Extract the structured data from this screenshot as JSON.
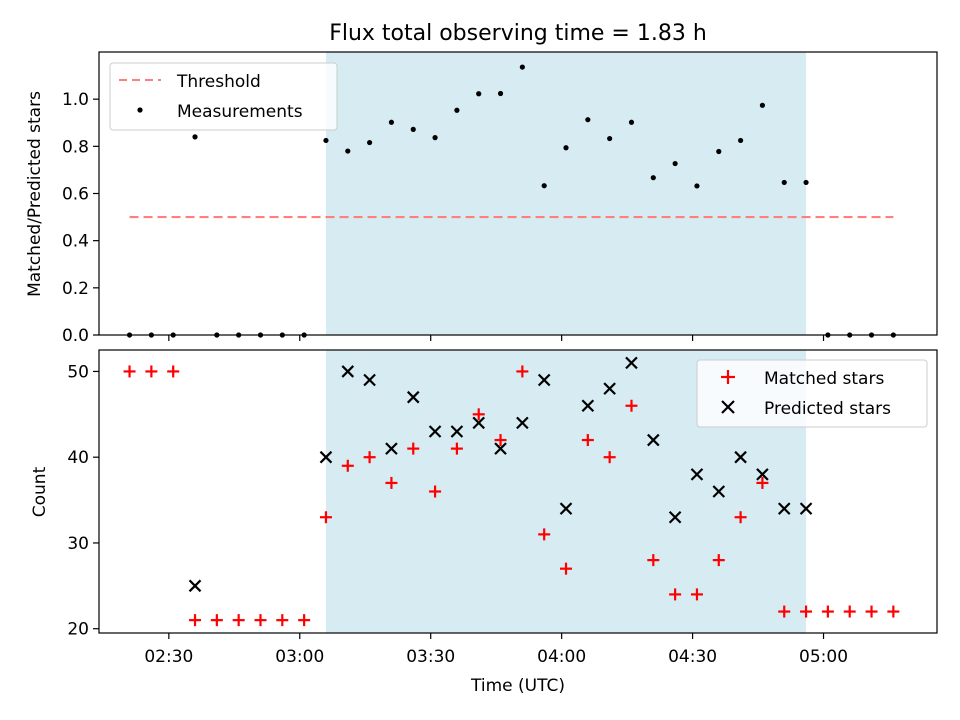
{
  "title": "Flux total observing time = 1.83 h",
  "colors": {
    "threshold": "#ff7f7f",
    "measurements": "#000000",
    "matched": "#ff0000",
    "predicted": "#000000",
    "observing_band": "#add8e6"
  },
  "chart_data": [
    {
      "type": "scatter",
      "panel": "top",
      "title": "Flux total observing time = 1.83 h",
      "xlabel": "",
      "ylabel": "Matched/Predicted stars",
      "xlim": [
        "02:14",
        "05:26"
      ],
      "ylim": [
        0,
        1.2
      ],
      "yticks": [
        0.0,
        0.2,
        0.4,
        0.6,
        0.8,
        1.0
      ],
      "ytick_labels": [
        "0.0",
        "0.2",
        "0.4",
        "0.6",
        "0.8",
        "1.0"
      ],
      "shaded_span": [
        "03:06",
        "04:56"
      ],
      "legend": {
        "placement": "top-left",
        "entries": [
          "Threshold",
          "Measurements"
        ]
      },
      "threshold": {
        "name": "Threshold",
        "x": [
          "02:21",
          "05:16"
        ],
        "y": 0.5,
        "style": "dashed"
      },
      "series": [
        {
          "name": "Measurements",
          "marker": "dot",
          "x": [
            "02:21",
            "02:26",
            "02:31",
            "02:36",
            "02:41",
            "02:46",
            "02:51",
            "02:56",
            "03:01",
            "03:06",
            "03:11",
            "03:16",
            "03:21",
            "03:26",
            "03:31",
            "03:36",
            "03:41",
            "03:46",
            "03:51",
            "03:56",
            "04:01",
            "04:06",
            "04:11",
            "04:16",
            "04:21",
            "04:26",
            "04:31",
            "04:36",
            "04:41",
            "04:46",
            "04:51",
            "04:56",
            "05:01",
            "05:06",
            "05:11",
            "05:16"
          ],
          "y": [
            0,
            0,
            0,
            0.84,
            0,
            0,
            0,
            0,
            0,
            0.825,
            0.78,
            0.816,
            0.902,
            0.872,
            0.837,
            0.953,
            1.023,
            1.024,
            1.136,
            0.633,
            0.794,
            0.913,
            0.833,
            0.902,
            0.667,
            0.727,
            0.632,
            0.778,
            0.825,
            0.974,
            0.647,
            0.647,
            0,
            0,
            0,
            0
          ]
        }
      ]
    },
    {
      "type": "scatter",
      "panel": "bottom",
      "xlabel": "Time (UTC)",
      "ylabel": "Count",
      "xlim": [
        "02:14",
        "05:26"
      ],
      "ylim": [
        19.5,
        52.5
      ],
      "yticks": [
        20,
        30,
        40,
        50
      ],
      "ytick_labels": [
        "20",
        "30",
        "40",
        "50"
      ],
      "xticks": [
        "02:30",
        "03:00",
        "03:30",
        "04:00",
        "04:30",
        "05:00"
      ],
      "xtick_labels": [
        "02:30",
        "03:00",
        "03:30",
        "04:00",
        "04:30",
        "05:00"
      ],
      "shaded_span": [
        "03:06",
        "04:56"
      ],
      "legend": {
        "placement": "top-right",
        "entries": [
          "Matched stars",
          "Predicted stars"
        ]
      },
      "series": [
        {
          "name": "Matched stars",
          "marker": "plus",
          "x": [
            "02:21",
            "02:26",
            "02:31",
            "02:36",
            "02:41",
            "02:46",
            "02:51",
            "02:56",
            "03:01",
            "03:06",
            "03:11",
            "03:16",
            "03:21",
            "03:26",
            "03:31",
            "03:36",
            "03:41",
            "03:46",
            "03:51",
            "03:56",
            "04:01",
            "04:06",
            "04:11",
            "04:16",
            "04:21",
            "04:26",
            "04:31",
            "04:36",
            "04:41",
            "04:46",
            "04:51",
            "04:56",
            "05:01",
            "05:06",
            "05:11",
            "05:16"
          ],
          "y": [
            50,
            50,
            50,
            21,
            21,
            21,
            21,
            21,
            21,
            33,
            39,
            40,
            37,
            41,
            36,
            41,
            45,
            42,
            50,
            31,
            27,
            42,
            40,
            46,
            28,
            24,
            24,
            28,
            33,
            37,
            22,
            22,
            22,
            22,
            22,
            22
          ]
        },
        {
          "name": "Predicted stars",
          "marker": "x",
          "x": [
            "02:36",
            "03:06",
            "03:11",
            "03:16",
            "03:21",
            "03:26",
            "03:31",
            "03:36",
            "03:41",
            "03:46",
            "03:51",
            "03:56",
            "04:01",
            "04:06",
            "04:11",
            "04:16",
            "04:21",
            "04:26",
            "04:31",
            "04:36",
            "04:41",
            "04:46",
            "04:51",
            "04:56"
          ],
          "y": [
            25,
            40,
            50,
            49,
            41,
            47,
            43,
            43,
            44,
            41,
            44,
            49,
            34,
            46,
            48,
            51,
            42,
            33,
            38,
            36,
            40,
            38,
            34,
            34
          ]
        }
      ]
    }
  ]
}
